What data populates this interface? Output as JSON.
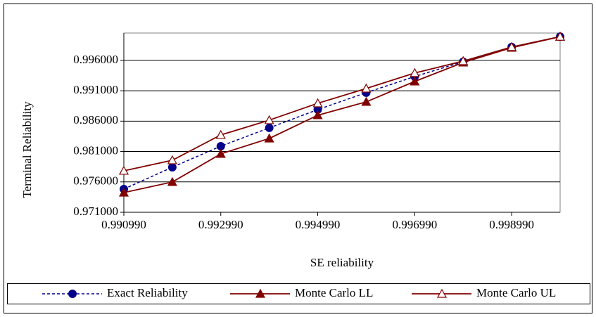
{
  "chart_data": {
    "type": "line",
    "x_label": "SE reliability",
    "y_label": "Terminal Reliability",
    "x": [
      0.99099,
      0.99199,
      0.99299,
      0.99399,
      0.99499,
      0.99599,
      0.99699,
      0.99799,
      0.99899,
      0.99999
    ],
    "series": [
      {
        "name": "Exact Reliability",
        "color": "#00008b",
        "marker": "circle",
        "dash": true,
        "values": [
          0.97482,
          0.97841,
          0.98188,
          0.98489,
          0.9879,
          0.99068,
          0.99334,
          0.99577,
          0.9982,
          0.9999
        ]
      },
      {
        "name": "Monte Carlo LL",
        "color": "#800000",
        "marker": "triangle-filled",
        "dash": false,
        "values": [
          0.97424,
          0.97598,
          0.98061,
          0.98315,
          0.98697,
          0.98917,
          0.99253,
          0.99565,
          0.99808,
          0.9999
        ]
      },
      {
        "name": "Monte Carlo UL",
        "color": "#800000",
        "marker": "triangle-open",
        "dash": false,
        "values": [
          0.97783,
          0.97956,
          0.98373,
          0.98616,
          0.98894,
          0.99137,
          0.99392,
          0.99588,
          0.9982,
          0.9999
        ]
      }
    ],
    "xlim": [
      0.99099,
      0.99999
    ],
    "xticks": [
      {
        "value": 0.99099,
        "label": "0.990990"
      },
      {
        "value": 0.99299,
        "label": "0.992990"
      },
      {
        "value": 0.99499,
        "label": "0.994990"
      },
      {
        "value": 0.99699,
        "label": "0.996990"
      },
      {
        "value": 0.99899,
        "label": "0.998990"
      }
    ],
    "ylim": [
      0.971,
      1.0005
    ],
    "yticks": [
      {
        "value": 0.971,
        "label": "0.971000"
      },
      {
        "value": 0.976,
        "label": "0.976000"
      },
      {
        "value": 0.981,
        "label": "0.981000"
      },
      {
        "value": 0.986,
        "label": "0.986000"
      },
      {
        "value": 0.991,
        "label": "0.991000"
      },
      {
        "value": 0.996,
        "label": "0.996000"
      }
    ],
    "grid": true,
    "legend": "bottom"
  }
}
